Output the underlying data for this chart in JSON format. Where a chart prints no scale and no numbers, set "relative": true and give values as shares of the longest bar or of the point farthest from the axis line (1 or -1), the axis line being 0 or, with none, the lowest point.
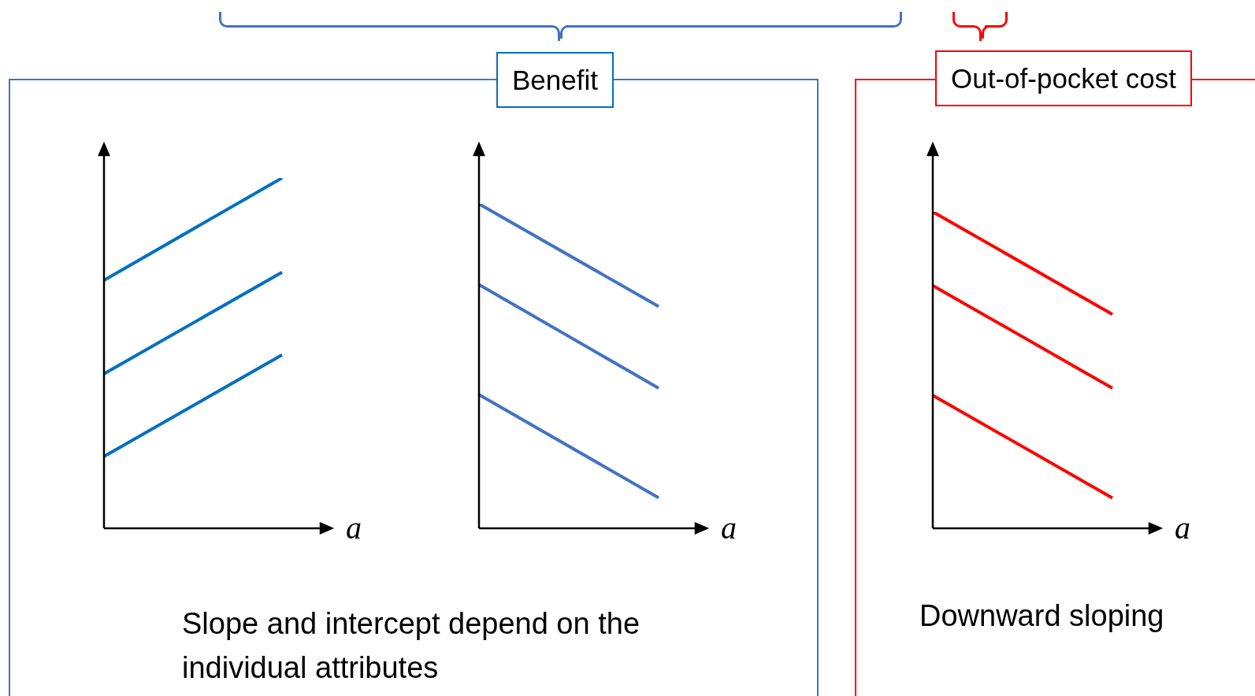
{
  "chart_data": [
    {
      "type": "line",
      "relative": true,
      "categories": [
        null,
        null
      ],
      "xlabel": "a",
      "annotations": [
        "Benefit",
        "Slope and intercept depend on the individual attributes"
      ],
      "series": [
        {
          "color": "#0070c0",
          "values": [
            0.708,
            1
          ]
        },
        {
          "color": "#0070c0",
          "values": [
            0.441,
            0.731
          ]
        },
        {
          "color": "#0070c0",
          "values": [
            0.205,
            0.495
          ]
        }
      ]
    },
    {
      "type": "line",
      "relative": true,
      "categories": [
        null,
        null
      ],
      "xlabel": "a",
      "series": [
        {
          "color": "#4472c4",
          "values": [
            1,
            0.684
          ]
        },
        {
          "color": "#4472c4",
          "values": [
            0.751,
            0.432
          ]
        },
        {
          "color": "#4472c4",
          "values": [
            0.412,
            0.094
          ]
        }
      ]
    },
    {
      "type": "line",
      "relative": true,
      "categories": [
        null,
        null
      ],
      "xlabel": "a",
      "annotations": [
        "Out-of-pocket cost",
        "Downward sloping"
      ],
      "series": [
        {
          "color": "#ff0000",
          "values": [
            1,
            0.676
          ]
        },
        {
          "color": "#ff0000",
          "values": [
            0.767,
            0.443
          ]
        },
        {
          "color": "#ff0000",
          "values": [
            0.42,
            0.096
          ]
        }
      ]
    }
  ]
}
